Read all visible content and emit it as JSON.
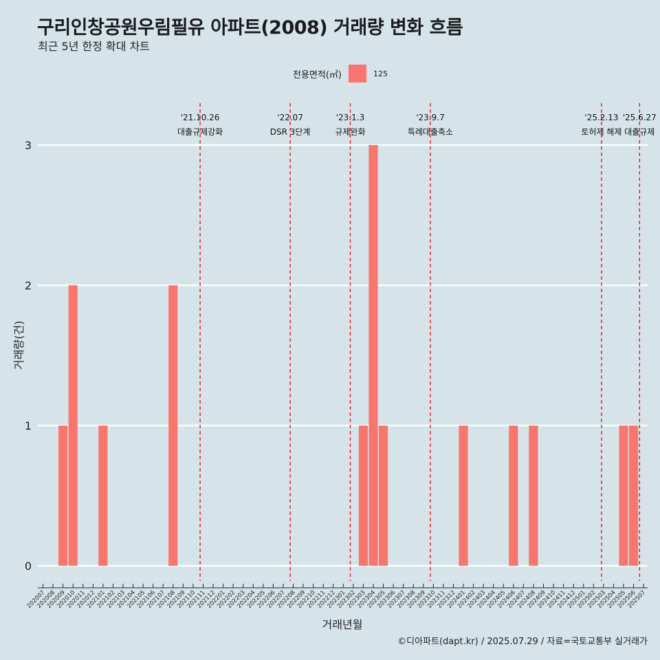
{
  "title": "구리인창공원우림필유 아파트(2008) 거래량 변화 흐름",
  "subtitle": "최근 5년 한정 확대 차트",
  "caption": "©디아파트(dapt.kr) / 2025.07.29 / 자료=국토교통부 실거래가",
  "legend": {
    "title": "전용면적(㎡)",
    "label": "125"
  },
  "colors": {
    "bar": "#f8766d",
    "background": "#d6e4ea",
    "event_line": "#e41a1c",
    "grid": "#ffffff"
  },
  "chart_data": {
    "type": "bar",
    "xlabel": "거래년월",
    "ylabel": "거래량(건)",
    "ylim": [
      0,
      3
    ],
    "yticks": [
      0,
      1,
      2,
      3
    ],
    "grid": true,
    "legend_position": "top",
    "categories": [
      "202007",
      "202008",
      "202009",
      "202010",
      "202011",
      "202012",
      "202101",
      "202102",
      "202103",
      "202104",
      "202105",
      "202106",
      "202107",
      "202108",
      "202109",
      "202110",
      "202111",
      "202112",
      "202201",
      "202202",
      "202203",
      "202204",
      "202205",
      "202206",
      "202207",
      "202208",
      "202209",
      "202210",
      "202211",
      "202212",
      "202301",
      "202302",
      "202303",
      "202304",
      "202305",
      "202306",
      "202307",
      "202308",
      "202309",
      "202310",
      "202311",
      "202312",
      "202401",
      "202402",
      "202403",
      "202404",
      "202405",
      "202406",
      "202407",
      "202408",
      "202409",
      "202410",
      "202411",
      "202412",
      "202501",
      "202502",
      "202503",
      "202504",
      "202505",
      "202506",
      "202507"
    ],
    "series": [
      {
        "name": "125",
        "values": [
          0,
          0,
          1,
          2,
          0,
          0,
          1,
          0,
          0,
          0,
          0,
          0,
          0,
          2,
          0,
          0,
          0,
          0,
          0,
          0,
          0,
          0,
          0,
          0,
          0,
          0,
          0,
          0,
          0,
          0,
          0,
          0,
          1,
          3,
          1,
          0,
          0,
          0,
          0,
          0,
          0,
          0,
          1,
          0,
          0,
          0,
          0,
          1,
          0,
          1,
          0,
          0,
          0,
          0,
          0,
          0,
          0,
          0,
          1,
          1,
          0
        ]
      }
    ],
    "annotations": [
      {
        "date": "'21.10.26",
        "label": "대출규제강화",
        "at": 15.7
      },
      {
        "date": "'22.07",
        "label": "DSR 3단계",
        "at": 24.7
      },
      {
        "date": "'23.1.3",
        "label": "규제완화",
        "at": 30.7
      },
      {
        "date": "'23.9.7",
        "label": "특례대출축소",
        "at": 38.7
      },
      {
        "date": "'25.2.13",
        "label": "토허제 해제",
        "at": 55.8
      },
      {
        "date": "'25.6.27",
        "label": "대출규제",
        "at": 59.6
      }
    ]
  }
}
